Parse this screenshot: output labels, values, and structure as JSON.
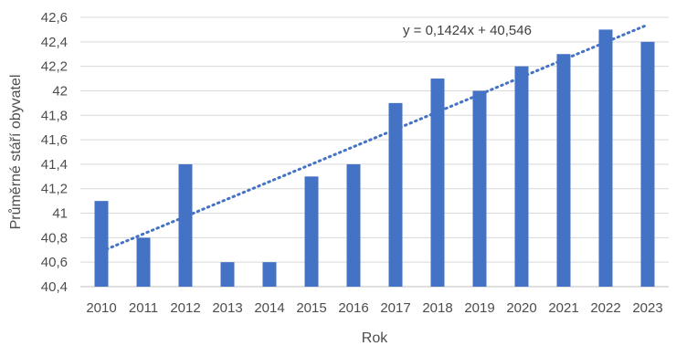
{
  "chart_data": {
    "type": "bar",
    "title": "",
    "xlabel": "Rok",
    "ylabel": "Průměrné stáří obyvatel",
    "categories": [
      "2010",
      "2011",
      "2012",
      "2013",
      "2014",
      "2015",
      "2016",
      "2017",
      "2018",
      "2019",
      "2020",
      "2021",
      "2022",
      "2023"
    ],
    "values": [
      41.1,
      40.8,
      41.4,
      40.6,
      40.6,
      41.3,
      41.4,
      41.9,
      42.1,
      42.0,
      42.2,
      42.3,
      42.5,
      42.4
    ],
    "ylim": [
      40.4,
      42.6
    ],
    "yticks": [
      40.4,
      40.6,
      40.8,
      41.0,
      41.2,
      41.4,
      41.6,
      41.8,
      42.0,
      42.2,
      42.4,
      42.6
    ],
    "ytick_labels": [
      "40,4",
      "40,6",
      "40,8",
      "41",
      "41,2",
      "41,4",
      "41,6",
      "41,8",
      "42",
      "42,2",
      "42,4",
      "42,6"
    ],
    "grid": true,
    "legend": "none",
    "trendline": {
      "type": "linear",
      "slope": 0.1424,
      "intercept": 40.546,
      "equation_label": "y = 0,1424x + 40,546"
    },
    "colors": {
      "bar": "#4472c4",
      "trendline": "#4472c4"
    }
  }
}
